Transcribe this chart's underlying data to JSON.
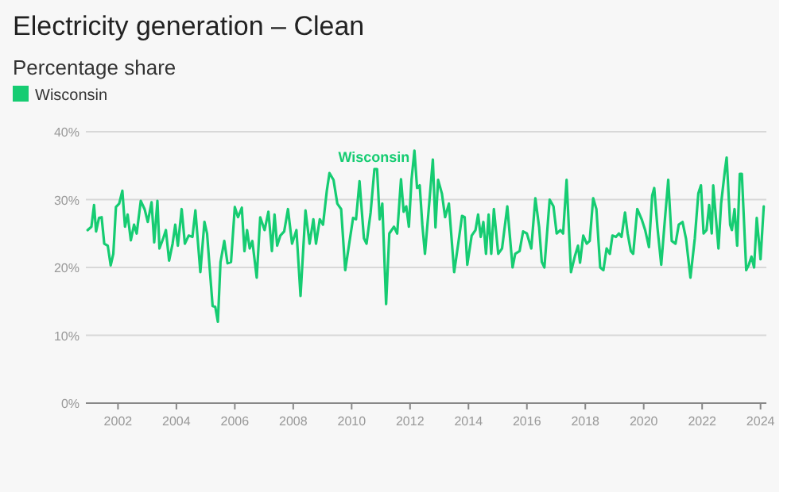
{
  "chart_data": {
    "type": "line",
    "title": "Electricity generation – Clean",
    "subtitle": "Percentage share",
    "xlim": [
      2000.9,
      2024.2
    ],
    "xticks": [
      2002,
      2004,
      2006,
      2008,
      2010,
      2012,
      2014,
      2016,
      2018,
      2020,
      2022,
      2024
    ],
    "ylim": [
      0,
      40
    ],
    "yticks": [
      {
        "value": 0,
        "label": "0%"
      },
      {
        "value": 10,
        "label": "10%"
      },
      {
        "value": 20,
        "label": "20%"
      },
      {
        "value": 30,
        "label": "30%"
      },
      {
        "value": 40,
        "label": "40%"
      }
    ],
    "grid": "y",
    "legend": "top left",
    "marker": "none",
    "line_style": "solid",
    "series": [
      {
        "name": "Wisconsin",
        "color": "#16cc72",
        "x": [
          2000.96,
          2001.09,
          2001.18,
          2001.25,
          2001.35,
          2001.44,
          2001.53,
          2001.65,
          2001.75,
          2001.84,
          2001.93,
          2002.04,
          2002.15,
          2002.24,
          2002.33,
          2002.44,
          2002.55,
          2002.64,
          2002.78,
          2002.91,
          2003.02,
          2003.15,
          2003.24,
          2003.35,
          2003.42,
          2003.55,
          2003.64,
          2003.75,
          2003.87,
          2003.96,
          2004.05,
          2004.18,
          2004.29,
          2004.42,
          2004.55,
          2004.65,
          2004.82,
          2004.96,
          2005.05,
          2005.15,
          2005.24,
          2005.33,
          2005.42,
          2005.51,
          2005.64,
          2005.75,
          2005.87,
          2006.0,
          2006.11,
          2006.24,
          2006.33,
          2006.42,
          2006.51,
          2006.6,
          2006.75,
          2006.87,
          2007.02,
          2007.15,
          2007.27,
          2007.36,
          2007.45,
          2007.56,
          2007.69,
          2007.82,
          2007.96,
          2008.11,
          2008.25,
          2008.42,
          2008.56,
          2008.69,
          2008.78,
          2008.91,
          2009.02,
          2009.15,
          2009.24,
          2009.38,
          2009.51,
          2009.64,
          2009.78,
          2009.93,
          2010.05,
          2010.15,
          2010.27,
          2010.42,
          2010.51,
          2010.65,
          2010.78,
          2010.87,
          2010.96,
          2011.05,
          2011.18,
          2011.29,
          2011.45,
          2011.56,
          2011.69,
          2011.78,
          2011.87,
          2011.96,
          2012.05,
          2012.15,
          2012.24,
          2012.33,
          2012.42,
          2012.51,
          2012.64,
          2012.78,
          2012.87,
          2012.96,
          2013.09,
          2013.2,
          2013.33,
          2013.51,
          2013.65,
          2013.78,
          2013.87,
          2013.96,
          2014.11,
          2014.24,
          2014.33,
          2014.42,
          2014.51,
          2014.6,
          2014.69,
          2014.78,
          2014.87,
          2015.02,
          2015.15,
          2015.33,
          2015.51,
          2015.6,
          2015.75,
          2015.87,
          2016.0,
          2016.15,
          2016.29,
          2016.42,
          2016.51,
          2016.6,
          2016.78,
          2016.91,
          2017.02,
          2017.15,
          2017.24,
          2017.36,
          2017.51,
          2017.64,
          2017.75,
          2017.82,
          2017.93,
          2018.05,
          2018.15,
          2018.27,
          2018.38,
          2018.51,
          2018.62,
          2018.73,
          2018.84,
          2018.93,
          2019.05,
          2019.15,
          2019.24,
          2019.36,
          2019.45,
          2019.56,
          2019.64,
          2019.78,
          2019.93,
          2020.05,
          2020.18,
          2020.29,
          2020.36,
          2020.47,
          2020.6,
          2020.73,
          2020.84,
          2020.96,
          2021.09,
          2021.2,
          2021.33,
          2021.45,
          2021.6,
          2021.75,
          2021.87,
          2021.96,
          2022.05,
          2022.15,
          2022.24,
          2022.33,
          2022.38,
          2022.47,
          2022.56,
          2022.65,
          2022.78,
          2022.84,
          2022.96,
          2023.02,
          2023.11,
          2023.2,
          2023.29,
          2023.36,
          2023.51,
          2023.6,
          2023.69,
          2023.78,
          2023.87,
          2024.0,
          2024.11
        ],
        "values": [
          25.5,
          26,
          29.2,
          25.3,
          27.3,
          27.4,
          23.5,
          23.2,
          20.3,
          22,
          28.9,
          29.4,
          31.3,
          26,
          27.8,
          24,
          26.3,
          25,
          29.8,
          28.6,
          26.7,
          29.6,
          23.7,
          29.8,
          22.8,
          24.3,
          25.5,
          21,
          23.5,
          26.3,
          23.2,
          28.6,
          23.5,
          24.7,
          24.5,
          28.4,
          19.3,
          26.7,
          25,
          19.3,
          14.3,
          14.2,
          12,
          20.8,
          23.9,
          20.6,
          20.8,
          28.9,
          27.4,
          28.8,
          22.4,
          25.5,
          22.8,
          23.9,
          18.5,
          27.4,
          25.5,
          28.2,
          22.4,
          27.8,
          23.2,
          24.7,
          25.3,
          28.6,
          23.5,
          25.5,
          15.8,
          28.4,
          23.5,
          27.1,
          23.5,
          27.1,
          26.3,
          31.3,
          33.9,
          32.9,
          29.4,
          28.6,
          19.6,
          23.9,
          27.3,
          27.1,
          32.7,
          24.3,
          23.5,
          28.1,
          34.5,
          34.5,
          27.1,
          29.4,
          14.6,
          25,
          26,
          25,
          33,
          28.2,
          29,
          26,
          32.9,
          37.2,
          31.7,
          32.1,
          26.3,
          22,
          28.6,
          35.9,
          25.9,
          32.9,
          30.9,
          27.4,
          29.4,
          19.3,
          23.5,
          27.6,
          27.4,
          20.4,
          24.7,
          25.5,
          27.8,
          24.5,
          26.7,
          22,
          27.8,
          22,
          28.6,
          22,
          22.8,
          29,
          20,
          22,
          22.4,
          25.3,
          25,
          22.8,
          30.2,
          25.9,
          20.8,
          20,
          30,
          29,
          25,
          25.5,
          25,
          32.9,
          19.3,
          21.6,
          23.2,
          20.7,
          24.7,
          23.5,
          23.9,
          30.2,
          28.6,
          20,
          19.6,
          22.8,
          22,
          24.7,
          24.5,
          25,
          24.5,
          28.1,
          25,
          22.4,
          22,
          28.6,
          27.1,
          25.5,
          23,
          30.6,
          31.7,
          25.9,
          20.4,
          27.3,
          32.9,
          23.9,
          23.5,
          26.3,
          26.7,
          24.2,
          18.5,
          24.3,
          30.9,
          32.1,
          25,
          25.5,
          29.2,
          25,
          32.1,
          27.4,
          22.8,
          29.4,
          34.3,
          36.2,
          26.3,
          25.5,
          28.6,
          23.2,
          33.8,
          33.8,
          19.6,
          20.4,
          21.6,
          20,
          27.3,
          21.2,
          29
        ]
      }
    ]
  }
}
